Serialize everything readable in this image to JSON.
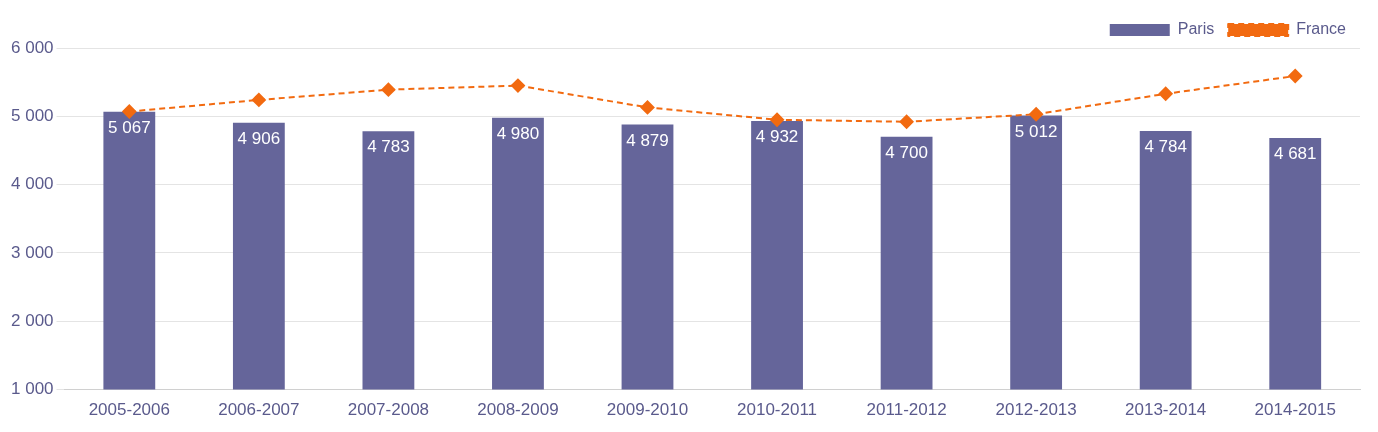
{
  "chart_data": {
    "type": "bar",
    "categories": [
      "2005-2006",
      "2006-2007",
      "2007-2008",
      "2008-2009",
      "2009-2010",
      "2010-2011",
      "2011-2012",
      "2012-2013",
      "2013-2014",
      "2014-2015"
    ],
    "series": [
      {
        "name": "Paris",
        "color": "#65659a",
        "values": [
          5067,
          4906,
          4783,
          4980,
          4879,
          4932,
          4700,
          5012,
          4784,
          4681
        ],
        "value_labels": [
          "5 067",
          "4 906",
          "4 783",
          "4 980",
          "4 879",
          "4 932",
          "4 700",
          "5 012",
          "4 784",
          "4 681"
        ]
      },
      {
        "name": "France",
        "type": "line",
        "color": "#f26a10",
        "marker": "diamond",
        "line_style": "dashed",
        "values": [
          5070,
          5240,
          5390,
          5450,
          5130,
          4950,
          4920,
          5030,
          5330,
          5590
        ]
      }
    ],
    "ylim": [
      1000,
      6000
    ],
    "yticks": [
      {
        "value": 1000,
        "label": "1 000"
      },
      {
        "value": 2000,
        "label": "2 000"
      },
      {
        "value": 3000,
        "label": "3 000"
      },
      {
        "value": 4000,
        "label": "4 000"
      },
      {
        "value": 5000,
        "label": "5 000"
      },
      {
        "value": 6000,
        "label": "6 000"
      }
    ],
    "grid": "y",
    "legend": "top"
  }
}
